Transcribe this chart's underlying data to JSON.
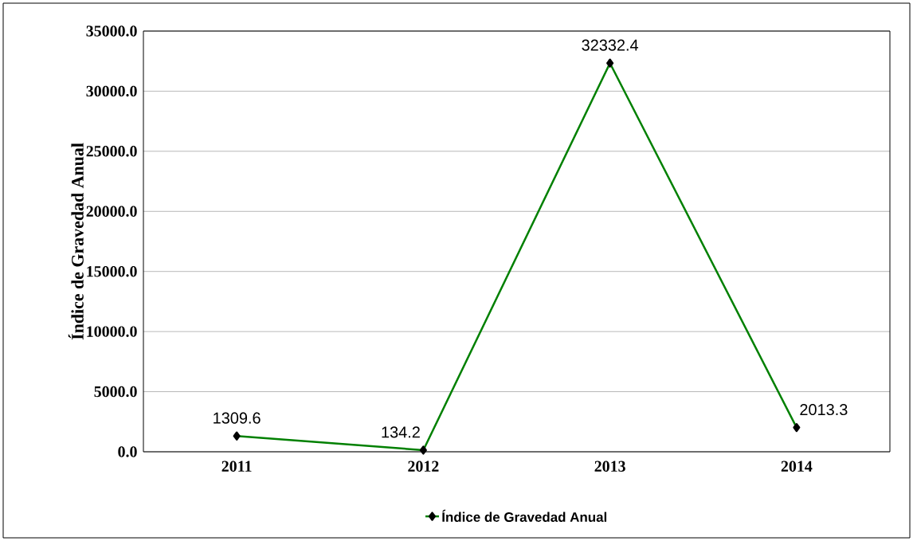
{
  "chart_data": {
    "type": "line",
    "ylabel": "Índice de Gravedad Anual",
    "categories": [
      "2011",
      "2012",
      "2013",
      "2014"
    ],
    "series": [
      {
        "name": "Índice de Gravedad Anual",
        "color": "#008000",
        "values": [
          1309.6,
          134.2,
          32332.4,
          2013.3
        ]
      }
    ],
    "ylim": [
      0,
      35000
    ],
    "yticks": [
      {
        "value": 0,
        "label": "0.0"
      },
      {
        "value": 5000,
        "label": "5000.0"
      },
      {
        "value": 10000,
        "label": "10000.0"
      },
      {
        "value": 15000,
        "label": "15000.0"
      },
      {
        "value": 20000,
        "label": "20000.0"
      },
      {
        "value": 25000,
        "label": "25000.0"
      },
      {
        "value": 30000,
        "label": "30000.0"
      },
      {
        "value": 35000,
        "label": "35000.0"
      }
    ],
    "grid": "y",
    "legend": "bottom",
    "marker": "diamond",
    "line_style": "solid",
    "data_labels": true
  }
}
